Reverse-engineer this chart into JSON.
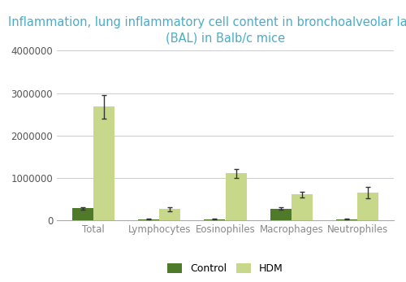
{
  "title": "Inflammation, lung inflammatory cell content in bronchoalveolar lavages\n(BAL) in Balb/c mice",
  "title_color": "#4BACC6",
  "categories": [
    "Total",
    "Lymphocytes",
    "Eosinophiles",
    "Macrophages",
    "Neutrophiles"
  ],
  "control_values": [
    280000,
    20000,
    20000,
    270000,
    20000
  ],
  "hdm_values": [
    2680000,
    260000,
    1100000,
    600000,
    650000
  ],
  "control_errors": [
    30000,
    5000,
    5000,
    30000,
    5000
  ],
  "hdm_errors": [
    280000,
    50000,
    110000,
    60000,
    130000
  ],
  "control_color": "#4E7A2A",
  "hdm_color": "#C8D88A",
  "bar_width": 0.32,
  "ylim": [
    0,
    4000000
  ],
  "yticks": [
    0,
    1000000,
    2000000,
    3000000,
    4000000
  ],
  "ylabel": "",
  "xlabel": "",
  "legend_labels": [
    "Control",
    "HDM"
  ],
  "background_color": "#FFFFFF",
  "grid_color": "#CCCCCC",
  "tick_label_fontsize": 8.5,
  "title_fontsize": 10.5,
  "legend_fontsize": 9,
  "xtick_color": "#888888",
  "ytick_color": "#555555"
}
